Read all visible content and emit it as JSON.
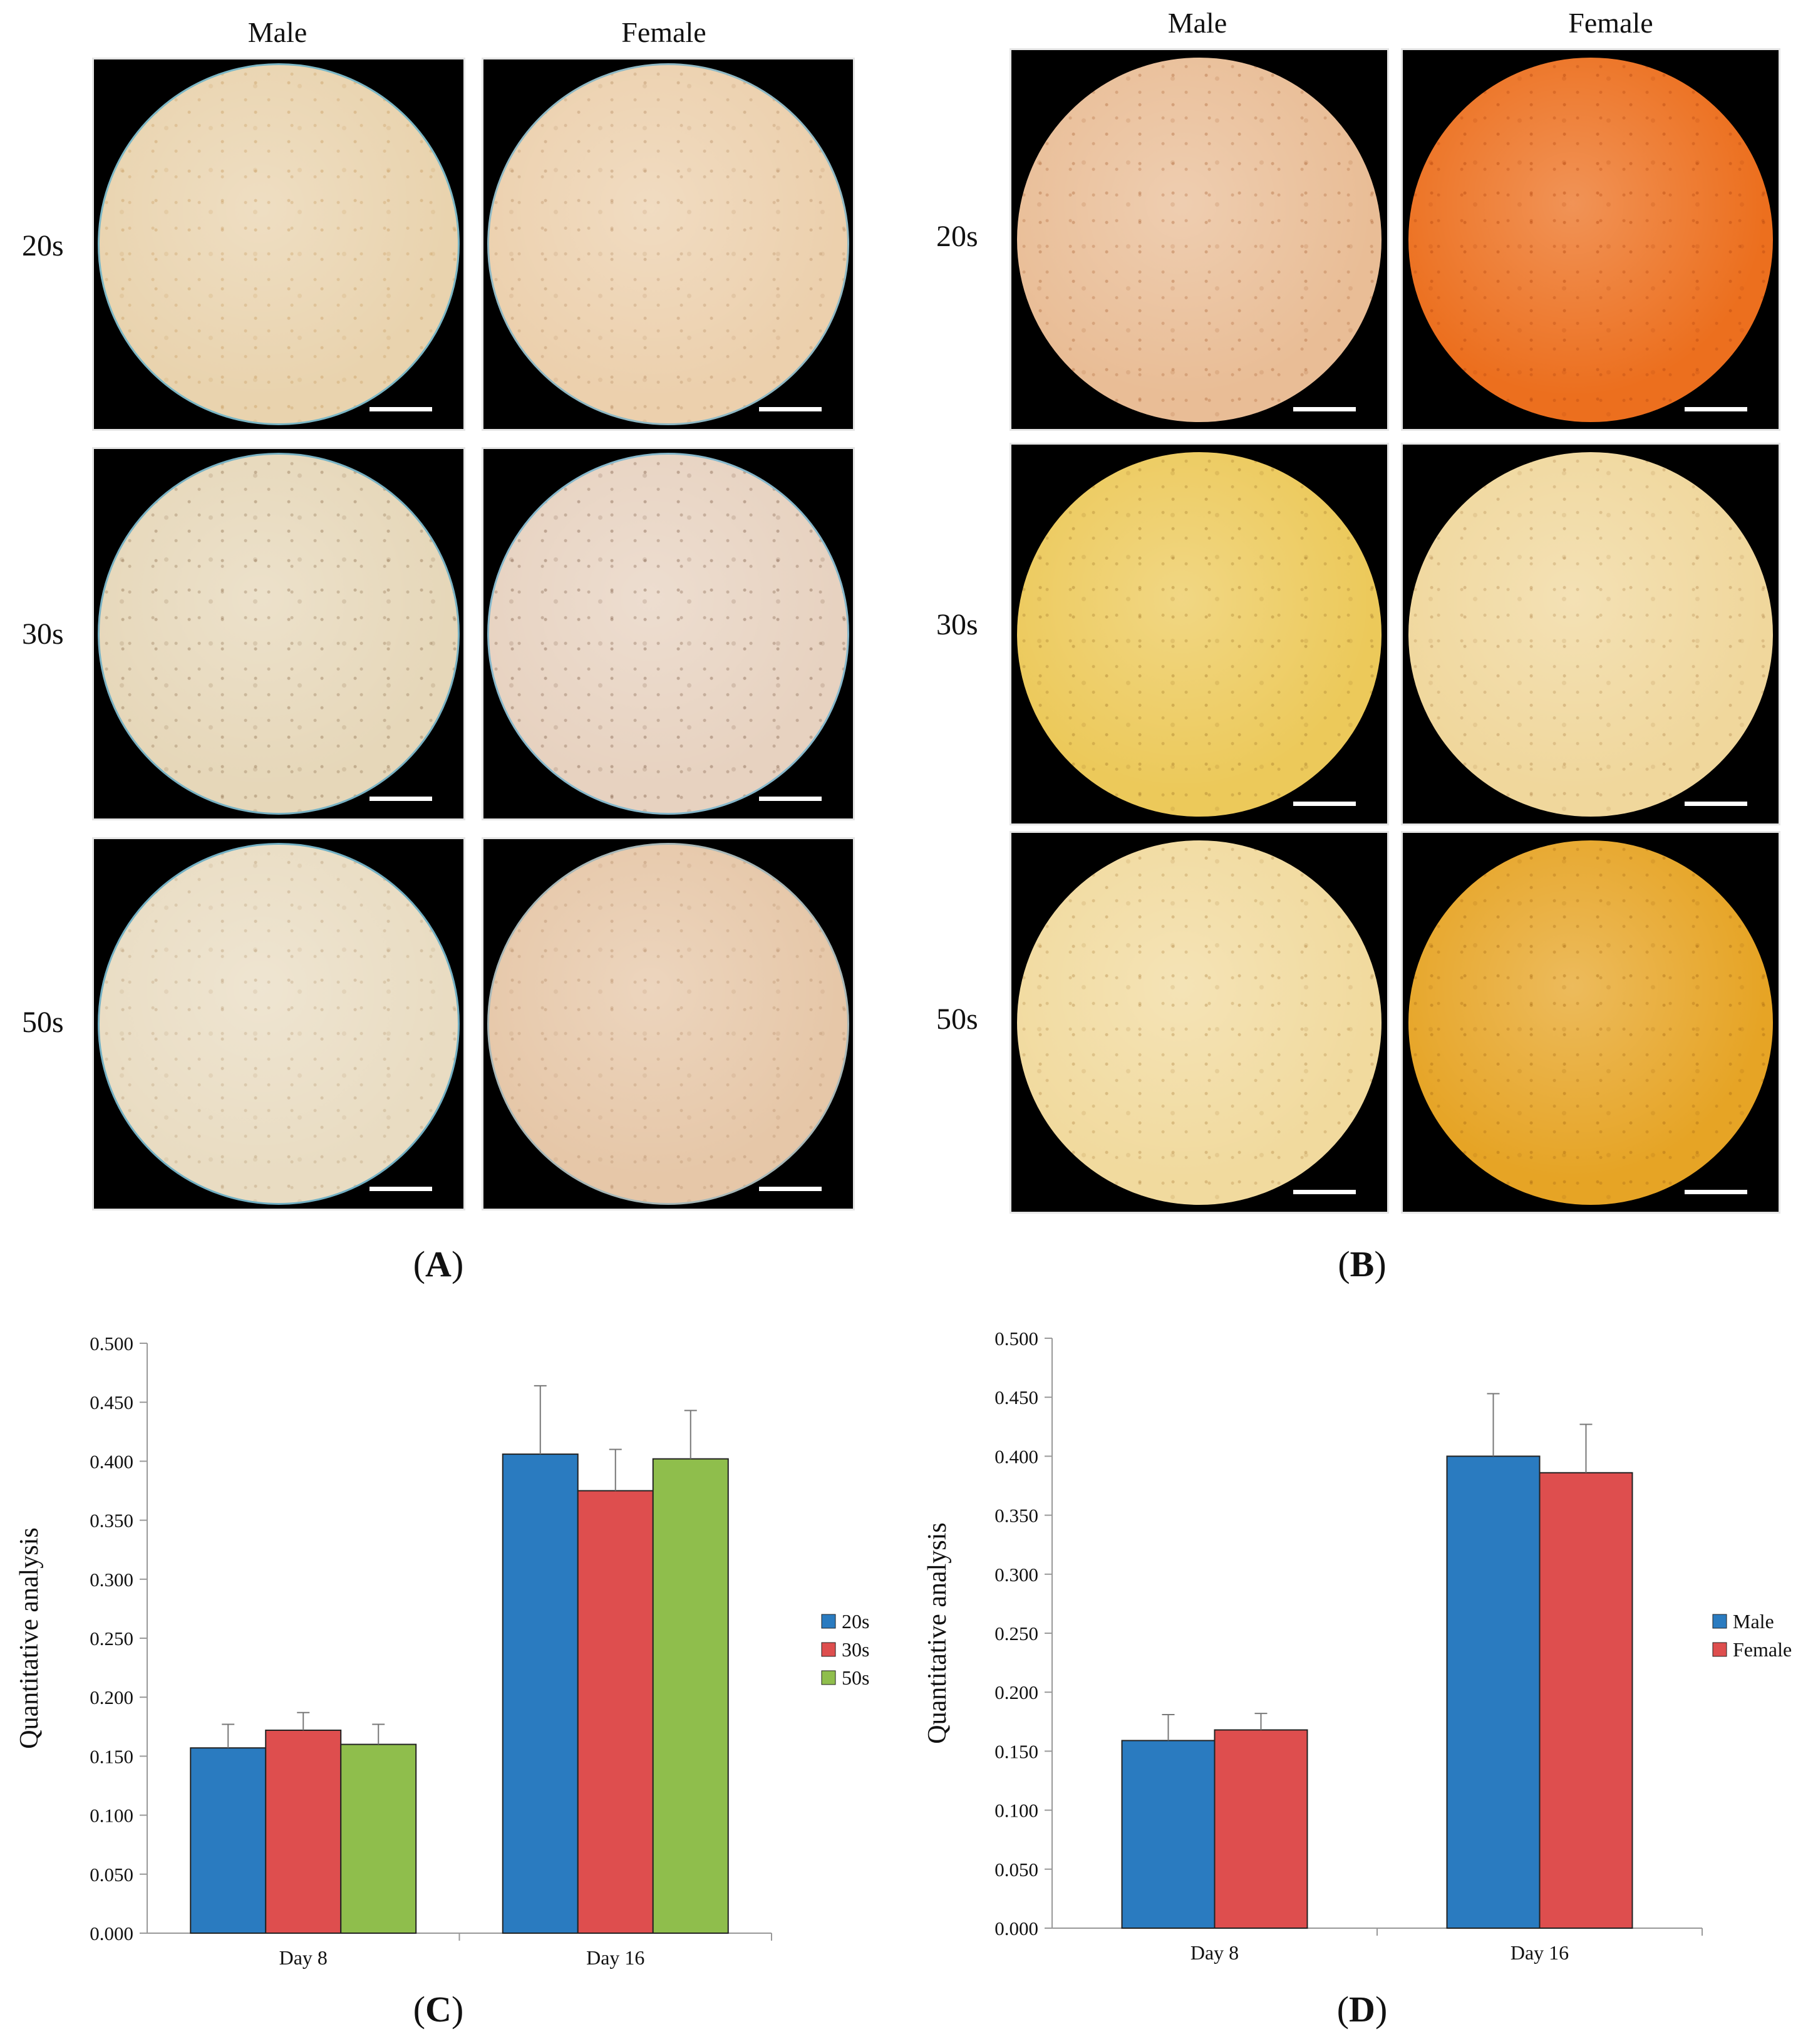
{
  "panels": {
    "A": {
      "letter": "A",
      "col_headers": [
        "Male",
        "Female"
      ],
      "row_labels": [
        "20s",
        "30s",
        "50s"
      ],
      "tiles": [
        {
          "name": "a-20s-male",
          "bg": "#e9d3ae",
          "spot": "#c79a5c",
          "rim": "#7bb7c6"
        },
        {
          "name": "a-20s-female",
          "bg": "#ecd0ad",
          "spot": "#b78d63",
          "rim": "#8fb9c5"
        },
        {
          "name": "a-30s-male",
          "bg": "#e6d7b9",
          "spot": "#8d6e4d",
          "rim": "#78b2c4"
        },
        {
          "name": "a-30s-female",
          "bg": "#e7d2c0",
          "spot": "#7d5c46",
          "rim": "#86b8cc"
        },
        {
          "name": "a-50s-male",
          "bg": "#e9dcc2",
          "spot": "#b99b75",
          "rim": "#72b0c4"
        },
        {
          "name": "a-50s-female",
          "bg": "#e6c7a8",
          "spot": "#b68e6a",
          "rim": "#a8b8b8"
        }
      ]
    },
    "B": {
      "letter": "B",
      "col_headers": [
        "Male",
        "Female"
      ],
      "row_labels": [
        "20s",
        "30s",
        "50s"
      ],
      "tiles": [
        {
          "name": "b-20s-male",
          "bg": "#e9bd96",
          "spot": "#b06a3c",
          "rim": "#000000"
        },
        {
          "name": "b-20s-female",
          "bg": "#ec6f1e",
          "spot": "#b3450e",
          "rim": "#000000"
        },
        {
          "name": "b-30s-male",
          "bg": "#ecc95a",
          "spot": "#a67a2c",
          "rim": "#000000"
        },
        {
          "name": "b-30s-female",
          "bg": "#f0d79c",
          "spot": "#b58a50",
          "rim": "#000000"
        },
        {
          "name": "b-50s-male",
          "bg": "#f1da9e",
          "spot": "#b58a48",
          "rim": "#000000"
        },
        {
          "name": "b-50s-female",
          "bg": "#e6a425",
          "spot": "#a86a14",
          "rim": "#000000"
        }
      ]
    },
    "C": {
      "letter": "C"
    },
    "D": {
      "letter": "D"
    }
  },
  "chart_data": [
    {
      "id": "C",
      "type": "bar",
      "categories": [
        "Day 8",
        "Day 16"
      ],
      "ylabel": "Quantitative analysis",
      "ylim": [
        0,
        0.5
      ],
      "yticks": [
        "0.000",
        "0.050",
        "0.100",
        "0.150",
        "0.200",
        "0.250",
        "0.300",
        "0.350",
        "0.400",
        "0.450",
        "0.500"
      ],
      "series": [
        {
          "name": "20s",
          "color": "#2a7bc0",
          "values": [
            0.157,
            0.406
          ],
          "errors": [
            0.02,
            0.058
          ]
        },
        {
          "name": "30s",
          "color": "#de4e4e",
          "values": [
            0.172,
            0.375
          ],
          "errors": [
            0.015,
            0.035
          ]
        },
        {
          "name": "50s",
          "color": "#8fbe4c",
          "values": [
            0.16,
            0.402
          ],
          "errors": [
            0.017,
            0.041
          ]
        }
      ],
      "legend": "right"
    },
    {
      "id": "D",
      "type": "bar",
      "categories": [
        "Day 8",
        "Day 16"
      ],
      "ylabel": "Quantitative analysis",
      "ylim": [
        0,
        0.5
      ],
      "yticks": [
        "0.000",
        "0.050",
        "0.100",
        "0.150",
        "0.200",
        "0.250",
        "0.300",
        "0.350",
        "0.400",
        "0.450",
        "0.500"
      ],
      "series": [
        {
          "name": "Male",
          "color": "#2a7bc0",
          "values": [
            0.159,
            0.4
          ],
          "errors": [
            0.022,
            0.053
          ]
        },
        {
          "name": "Female",
          "color": "#de4e4e",
          "values": [
            0.168,
            0.386
          ],
          "errors": [
            0.014,
            0.041
          ]
        }
      ],
      "legend": "right"
    }
  ]
}
